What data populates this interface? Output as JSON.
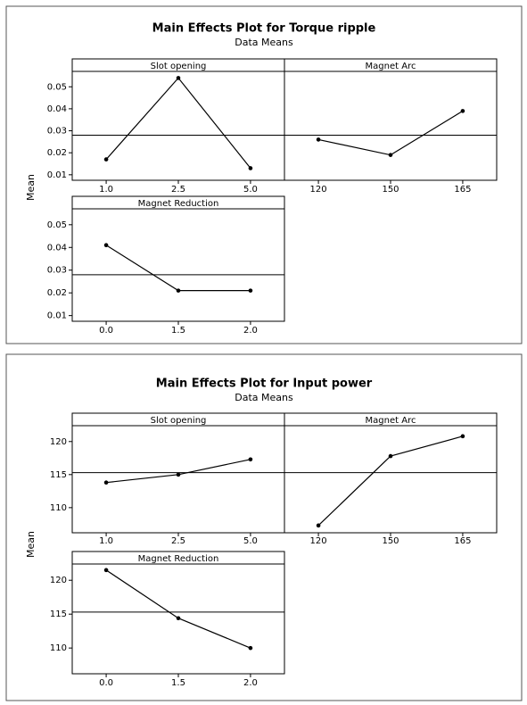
{
  "chart_data": [
    {
      "type": "line",
      "title": "Main Effects Plot for Torque ripple",
      "subtitle": "Data Means",
      "y_label": "Mean",
      "color": "#000000",
      "ylim": [
        0.0075,
        0.057
      ],
      "yticks": [
        0.01,
        0.02,
        0.03,
        0.04,
        0.05
      ],
      "reference_line": 0.028,
      "panels": [
        {
          "name": "Slot opening",
          "categories": [
            "1.0",
            "2.5",
            "5.0"
          ],
          "values": [
            0.017,
            0.054,
            0.013
          ]
        },
        {
          "name": "Magnet Arc",
          "categories": [
            "120",
            "150",
            "165"
          ],
          "values": [
            0.026,
            0.019,
            0.039
          ]
        },
        {
          "name": "Magnet Reduction",
          "categories": [
            "0.0",
            "1.5",
            "2.0"
          ],
          "values": [
            0.041,
            0.021,
            0.021
          ]
        }
      ]
    },
    {
      "type": "line",
      "title": "Main Effects Plot for Input power",
      "subtitle": "Data Means",
      "y_label": "Mean",
      "color": "#000000",
      "ylim": [
        106.2,
        122.4
      ],
      "yticks": [
        110,
        115,
        120
      ],
      "reference_line": 115.3,
      "panels": [
        {
          "name": "Slot opening",
          "categories": [
            "1.0",
            "2.5",
            "5.0"
          ],
          "values": [
            113.8,
            115.0,
            117.3
          ]
        },
        {
          "name": "Magnet Arc",
          "categories": [
            "120",
            "150",
            "165"
          ],
          "values": [
            107.3,
            117.8,
            120.8
          ]
        },
        {
          "name": "Magnet Reduction",
          "categories": [
            "0.0",
            "1.5",
            "2.0"
          ],
          "values": [
            121.5,
            114.4,
            110.0
          ]
        }
      ]
    }
  ]
}
